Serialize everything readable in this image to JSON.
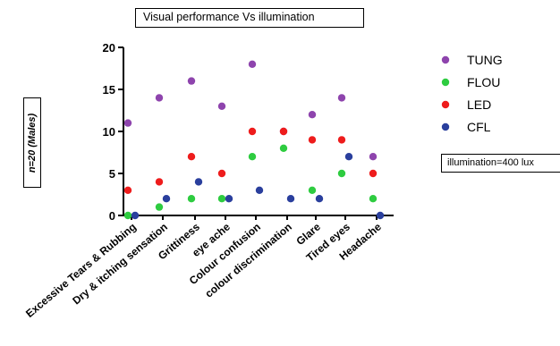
{
  "chart_data": {
    "type": "scatter",
    "title": "Visual performance Vs illumination",
    "ylabel": "n=20 (Males)",
    "ylim": [
      0,
      20
    ],
    "yticks": [
      0,
      5,
      10,
      15,
      20
    ],
    "annotation": "illumination=400 lux",
    "legend_position": "right",
    "categories": [
      "Excessive Tears & Rubbing",
      "Dry & itching sensation",
      "Grittiness",
      "eye ache",
      "Colour confusion",
      "colour discrimination",
      "Glare",
      "Tired eyes",
      "Headache"
    ],
    "series": [
      {
        "name": "TUNG",
        "color": "#8e44ad",
        "values": [
          11,
          14,
          16,
          13,
          18,
          10,
          12,
          14,
          7
        ]
      },
      {
        "name": "FLOU",
        "color": "#2ecc40",
        "values": [
          0,
          1,
          2,
          2,
          7,
          8,
          3,
          5,
          2
        ]
      },
      {
        "name": "LED",
        "color": "#ee1c1c",
        "values": [
          3,
          4,
          7,
          5,
          10,
          10,
          9,
          9,
          5
        ]
      },
      {
        "name": "CFL",
        "color": "#2a3f9d",
        "values": [
          0,
          2,
          4,
          2,
          3,
          2,
          2,
          7,
          0
        ]
      }
    ]
  }
}
